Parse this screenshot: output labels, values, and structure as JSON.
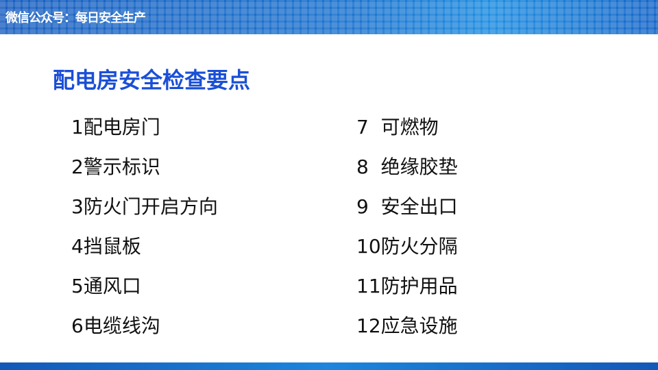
{
  "header": {
    "title": "微信公众号：每日安全生产"
  },
  "title": "配电房安全检查要点",
  "left_items": [
    "1配电房门",
    "2警示标识",
    "3防火门开启方向",
    "4挡鼠板",
    "5通风口",
    "6电缆线沟"
  ],
  "right_items": [
    "7  可燃物",
    "8  绝缘胶垫",
    "9  安全出口",
    "10防火分隔",
    "11防护用品",
    "12应急设施"
  ],
  "colors": {
    "title": "#1a4fd6",
    "header": "#1d75d0"
  }
}
